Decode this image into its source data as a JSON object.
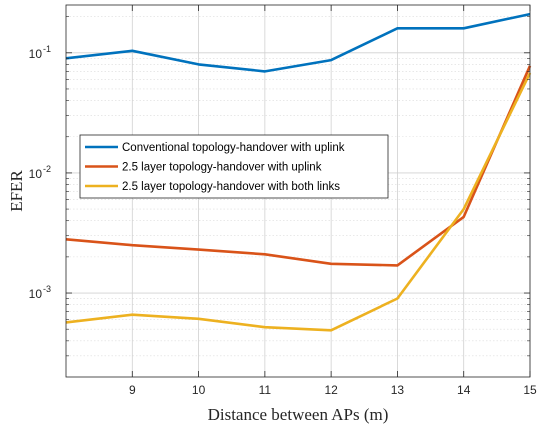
{
  "chart_data": {
    "type": "line",
    "title": "",
    "xlabel": "Distance between APs (m)",
    "ylabel": "EFER",
    "y_scale": "log",
    "xlim": [
      8,
      15
    ],
    "ylim": [
      0.0002,
      0.25
    ],
    "x_ticks": [
      9,
      10,
      11,
      12,
      13,
      14,
      15
    ],
    "y_ticks": [
      {
        "value": 0.1,
        "base": "10",
        "exp": "-1"
      },
      {
        "value": 0.01,
        "base": "10",
        "exp": "-2"
      },
      {
        "value": 0.001,
        "base": "10",
        "exp": "-3"
      }
    ],
    "grid": true,
    "legend_position": "center-left",
    "x": [
      8,
      9,
      10,
      11,
      12,
      13,
      14,
      15
    ],
    "series": [
      {
        "name": "Conventional topology-handover with uplink",
        "color": "#0072BD",
        "values": [
          0.09,
          0.104,
          0.08,
          0.07,
          0.087,
          0.16,
          0.16,
          0.21
        ]
      },
      {
        "name": "2.5 layer topology-handover with uplink",
        "color": "#D95319",
        "values": [
          0.0028,
          0.0025,
          0.0023,
          0.0021,
          0.00175,
          0.0017,
          0.0043,
          0.078
        ]
      },
      {
        "name": "2.5 layer topology-handover with both links",
        "color": "#EDB120",
        "values": [
          0.00057,
          0.00066,
          0.00061,
          0.00052,
          0.00049,
          0.0009,
          0.005,
          0.068
        ]
      }
    ]
  }
}
